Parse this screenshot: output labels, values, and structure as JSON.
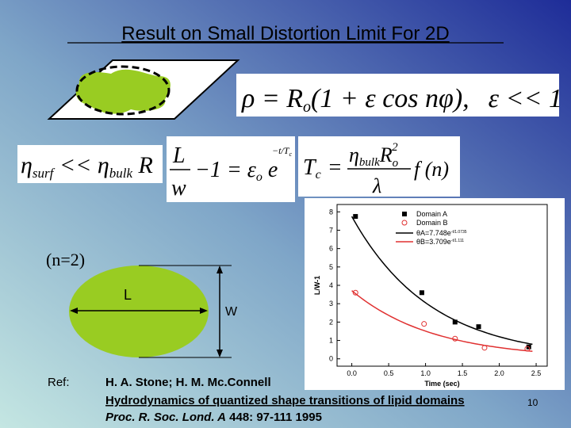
{
  "title": "Result on Small Distortion Limit For 2D",
  "equations": {
    "shape": [
      "ρ = R",
      "o",
      "(1 + ε cos nφ),",
      "ε << 1"
    ],
    "viscosity": [
      "η",
      "surf",
      " << η",
      "bulk",
      " R"
    ],
    "decay": {
      "numerator": "L",
      "denominator": "w",
      "body": "−1 = ε",
      "sub": "o",
      "exp_base": " e",
      "exponent": "−t/T",
      "exponent_sub": "c"
    },
    "time": {
      "lhs": "T",
      "lhs_sub": "c",
      "equals": "=",
      "numerator": [
        "η",
        "bulk",
        "R",
        "o",
        "2"
      ],
      "denominator": "λ",
      "tail": "f (n)"
    }
  },
  "mode_label": "(n=2)",
  "length_label": "L",
  "width_label": "W",
  "ref": {
    "label": "Ref:",
    "authors": "H. A. Stone; H. M. Mc.Connell",
    "paper": "Hydrodynamics of quantized shape transitions of lipid domains",
    "journal": "Proc. R. Soc. Lond. A",
    "volume": "448",
    "pages": ": 97-111 1995"
  },
  "page_number": "10",
  "chart_data": {
    "type": "scatter",
    "xlabel": "Time (sec)",
    "ylabel": "L/W-1",
    "xlim": [
      -0.2,
      2.65
    ],
    "ylim": [
      -0.4,
      8.4
    ],
    "xticks": [
      {
        "value": 0,
        "label": "0.0"
      },
      {
        "value": 0.5,
        "label": "0.5"
      },
      {
        "value": 1,
        "label": "1.0"
      },
      {
        "value": 1.5,
        "label": "1.5"
      },
      {
        "value": 2,
        "label": "2.0"
      },
      {
        "value": 2.5,
        "label": "2.5"
      }
    ],
    "yticks": [
      0,
      1,
      2,
      3,
      4,
      5,
      6,
      7,
      8
    ],
    "legend": "upper right",
    "series": [
      {
        "name": "Domain A",
        "color": "#000000",
        "marker": "square",
        "x": [
          0.05,
          0.95,
          1.4,
          1.72,
          2.4
        ],
        "values": [
          7.75,
          3.6,
          2.0,
          1.75,
          0.65
        ],
        "fit": {
          "label": "θA=7.748e",
          "exponent": "-t/1.0735",
          "a": 7.748,
          "tau": 1.0735
        }
      },
      {
        "name": "Domain B",
        "color": "#e03030",
        "marker": "circle",
        "x": [
          0.05,
          0.98,
          1.4,
          1.8,
          2.38
        ],
        "values": [
          3.6,
          1.9,
          1.1,
          0.6,
          0.55
        ],
        "fit": {
          "label": "θB=3.709e",
          "exponent": "-t/1.111",
          "a": 3.709,
          "tau": 1.111
        }
      }
    ]
  }
}
